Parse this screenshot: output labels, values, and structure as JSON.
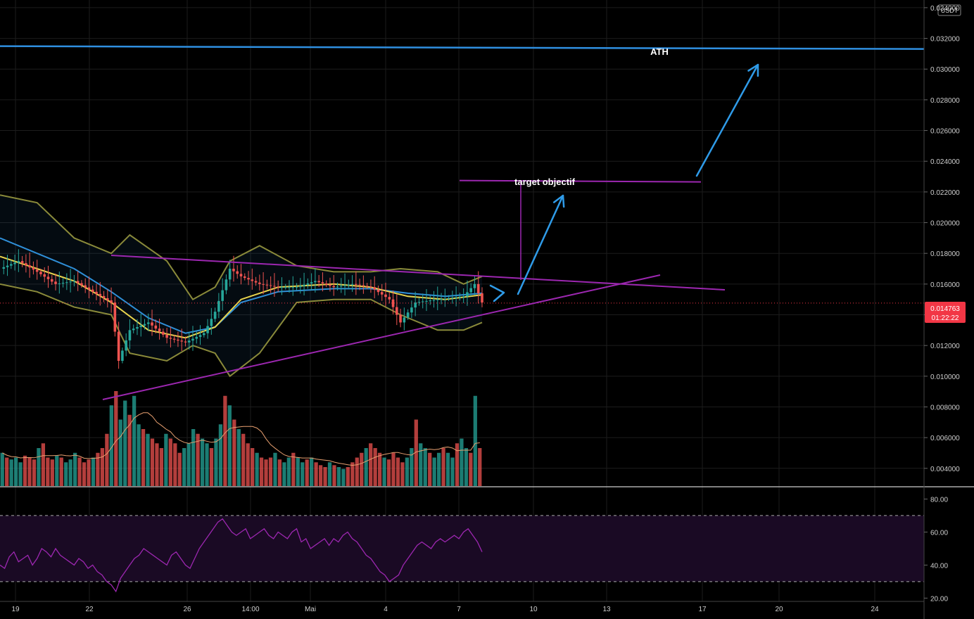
{
  "currency": "USDT",
  "colors": {
    "background": "#000000",
    "grid": "#1c1c1c",
    "up": "#26a69a",
    "down": "#ef5350",
    "bollinger": "#8a8a3a",
    "ema_fast": "#e8d44d",
    "ema_slow": "#2f8fd8",
    "volume_ma": "#e8a070",
    "rsi_line": "#9c27b0",
    "rsi_band": "#1a0a24",
    "trend_line": "#9c27b0",
    "target_line": "#9c27b0",
    "arrow": "#2f9be8",
    "ath_line": "#2f8fe0",
    "price_badge": "#f23645"
  },
  "annotations": {
    "ath_label": "ATH",
    "target_label": "target objectif"
  },
  "price_badge": {
    "price": "0.014763",
    "countdown": "01:22:22"
  },
  "chart_data": [
    {
      "type": "candlestick",
      "title": "",
      "y_axis_ticks": [
        "0.034000",
        "0.032000",
        "0.030000",
        "0.028000",
        "0.026000",
        "0.024000",
        "0.022000",
        "0.020000",
        "0.018000",
        "0.016000",
        "0.014000",
        "0.012000",
        "0.010000",
        "0.008000",
        "0.006000",
        "0.004000"
      ],
      "ylim": [
        0.0028,
        0.0345
      ],
      "x_axis_ticks": [
        "19",
        "22",
        "26",
        "14:00",
        "Mai",
        "4",
        "7",
        "10",
        "13",
        "17",
        "20",
        "24"
      ],
      "current_price": 0.014763,
      "ath_level": 0.0314,
      "target_level": 0.0227,
      "series": [
        {
          "name": "Close",
          "points": [
            [
              0,
              0.017
            ],
            [
              5,
              0.0175
            ],
            [
              10,
              0.0168
            ],
            [
              15,
              0.016
            ],
            [
              20,
              0.0162
            ],
            [
              25,
              0.0155
            ],
            [
              30,
              0.0148
            ],
            [
              32,
              0.011
            ],
            [
              35,
              0.013
            ],
            [
              40,
              0.0135
            ],
            [
              45,
              0.0125
            ],
            [
              50,
              0.0122
            ],
            [
              55,
              0.0128
            ],
            [
              58,
              0.0142
            ],
            [
              62,
              0.017
            ],
            [
              65,
              0.0165
            ],
            [
              70,
              0.016
            ],
            [
              75,
              0.0158
            ],
            [
              80,
              0.0158
            ],
            [
              85,
              0.0162
            ],
            [
              90,
              0.0158
            ],
            [
              95,
              0.016
            ],
            [
              100,
              0.0158
            ],
            [
              105,
              0.015
            ],
            [
              108,
              0.0135
            ],
            [
              112,
              0.0148
            ],
            [
              118,
              0.015
            ],
            [
              125,
              0.0152
            ],
            [
              128,
              0.016
            ],
            [
              130,
              0.0148
            ]
          ]
        },
        {
          "name": "Bollinger Upper",
          "points": [
            [
              0,
              0.0218
            ],
            [
              10,
              0.0213
            ],
            [
              20,
              0.019
            ],
            [
              30,
              0.018
            ],
            [
              35,
              0.0192
            ],
            [
              45,
              0.0175
            ],
            [
              52,
              0.015
            ],
            [
              58,
              0.0158
            ],
            [
              62,
              0.0175
            ],
            [
              70,
              0.0185
            ],
            [
              80,
              0.0172
            ],
            [
              90,
              0.0168
            ],
            [
              100,
              0.0168
            ],
            [
              108,
              0.017
            ],
            [
              118,
              0.0168
            ],
            [
              125,
              0.016
            ],
            [
              130,
              0.0165
            ]
          ]
        },
        {
          "name": "Bollinger Lower",
          "points": [
            [
              0,
              0.016
            ],
            [
              10,
              0.0155
            ],
            [
              20,
              0.0145
            ],
            [
              30,
              0.014
            ],
            [
              35,
              0.0115
            ],
            [
              45,
              0.011
            ],
            [
              52,
              0.012
            ],
            [
              58,
              0.0115
            ],
            [
              62,
              0.01
            ],
            [
              70,
              0.0115
            ],
            [
              80,
              0.0148
            ],
            [
              90,
              0.015
            ],
            [
              100,
              0.015
            ],
            [
              108,
              0.014
            ],
            [
              118,
              0.013
            ],
            [
              125,
              0.013
            ],
            [
              130,
              0.0135
            ]
          ]
        },
        {
          "name": "EMA fast",
          "points": [
            [
              0,
              0.0178
            ],
            [
              10,
              0.017
            ],
            [
              20,
              0.0162
            ],
            [
              30,
              0.0148
            ],
            [
              40,
              0.013
            ],
            [
              50,
              0.0125
            ],
            [
              58,
              0.0132
            ],
            [
              65,
              0.015
            ],
            [
              75,
              0.0158
            ],
            [
              90,
              0.016
            ],
            [
              100,
              0.0158
            ],
            [
              110,
              0.0152
            ],
            [
              120,
              0.015
            ],
            [
              130,
              0.0153
            ]
          ]
        },
        {
          "name": "EMA slow",
          "points": [
            [
              0,
              0.019
            ],
            [
              10,
              0.018
            ],
            [
              20,
              0.017
            ],
            [
              30,
              0.0155
            ],
            [
              40,
              0.0138
            ],
            [
              50,
              0.0128
            ],
            [
              58,
              0.0132
            ],
            [
              65,
              0.0148
            ],
            [
              75,
              0.0155
            ],
            [
              90,
              0.0157
            ],
            [
              100,
              0.0157
            ],
            [
              110,
              0.0154
            ],
            [
              120,
              0.0152
            ],
            [
              130,
              0.0154
            ]
          ]
        }
      ]
    },
    {
      "type": "bar",
      "title": "",
      "series": [
        {
          "name": "Volume",
          "values": [
            0.35,
            0.3,
            0.28,
            0.3,
            0.25,
            0.32,
            0.3,
            0.28,
            0.4,
            0.45,
            0.3,
            0.28,
            0.32,
            0.3,
            0.25,
            0.28,
            0.35,
            0.3,
            0.25,
            0.28,
            0.3,
            0.35,
            0.4,
            0.55,
            0.85,
            1.0,
            0.7,
            0.9,
            0.75,
            0.95,
            0.65,
            0.6,
            0.55,
            0.5,
            0.45,
            0.4,
            0.55,
            0.5,
            0.45,
            0.35,
            0.4,
            0.45,
            0.6,
            0.55,
            0.5,
            0.45,
            0.4,
            0.5,
            0.65,
            0.95,
            0.85,
            0.7,
            0.6,
            0.55,
            0.45,
            0.4,
            0.35,
            0.3,
            0.28,
            0.3,
            0.35,
            0.28,
            0.25,
            0.3,
            0.35,
            0.3,
            0.25,
            0.28,
            0.3,
            0.25,
            0.22,
            0.2,
            0.25,
            0.22,
            0.2,
            0.18,
            0.2,
            0.25,
            0.3,
            0.35,
            0.4,
            0.45,
            0.4,
            0.35,
            0.3,
            0.28,
            0.35,
            0.3,
            0.25,
            0.3,
            0.4,
            0.7,
            0.45,
            0.4,
            0.35,
            0.3,
            0.35,
            0.4,
            0.35,
            0.3,
            0.45,
            0.5,
            0.4,
            0.35,
            0.95,
            0.4
          ]
        }
      ]
    },
    {
      "type": "line",
      "title": "",
      "y_axis_ticks": [
        "80.00",
        "60.00",
        "40.00",
        "20.00"
      ],
      "ylim": [
        18,
        87
      ],
      "band": [
        30,
        70
      ],
      "series": [
        {
          "name": "RSI",
          "values": [
            40,
            38,
            45,
            48,
            42,
            44,
            46,
            40,
            44,
            50,
            48,
            45,
            50,
            46,
            44,
            42,
            40,
            44,
            42,
            38,
            40,
            36,
            34,
            30,
            28,
            24,
            32,
            36,
            40,
            44,
            46,
            50,
            48,
            46,
            44,
            42,
            40,
            46,
            48,
            44,
            40,
            38,
            44,
            50,
            54,
            58,
            62,
            66,
            68,
            64,
            60,
            58,
            60,
            62,
            56,
            58,
            60,
            62,
            58,
            56,
            60,
            58,
            56,
            60,
            62,
            54,
            56,
            50,
            52,
            54,
            56,
            52,
            56,
            54,
            58,
            60,
            56,
            54,
            50,
            46,
            44,
            40,
            36,
            34,
            30,
            32,
            34,
            40,
            44,
            48,
            52,
            54,
            52,
            50,
            54,
            56,
            54,
            56,
            58,
            56,
            60,
            62,
            58,
            54,
            48
          ]
        }
      ]
    }
  ]
}
